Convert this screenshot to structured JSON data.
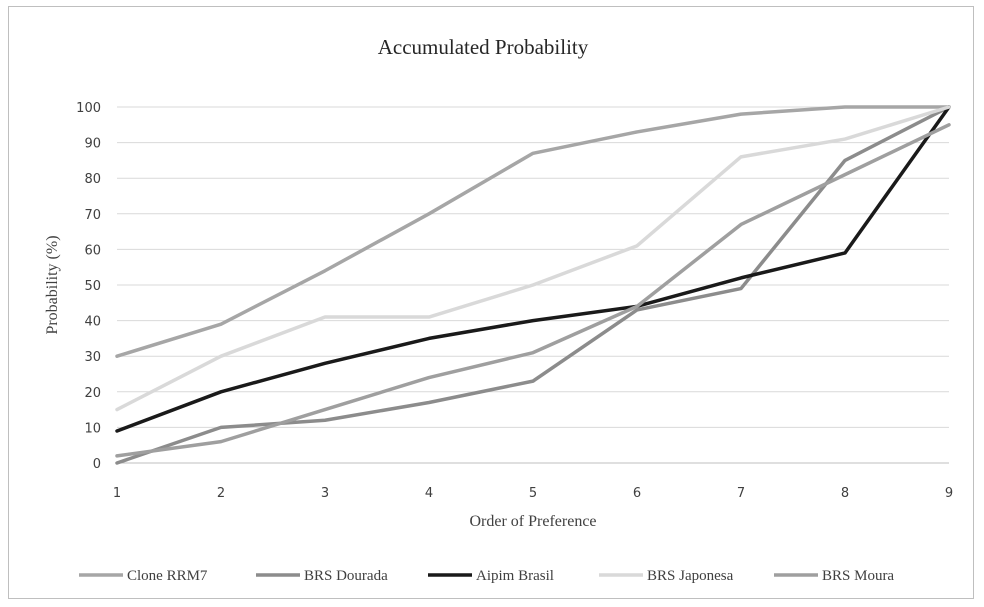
{
  "chart_data": {
    "type": "line",
    "title": "Accumulated Probability",
    "xlabel": "Order of Preference",
    "ylabel": "Probability (%)",
    "x": [
      1,
      2,
      3,
      4,
      5,
      6,
      7,
      8,
      9
    ],
    "xlim": [
      1,
      9
    ],
    "ylim": [
      0,
      100
    ],
    "yticks": [
      0,
      10,
      20,
      30,
      40,
      50,
      60,
      70,
      80,
      90,
      100
    ],
    "grid": "horizontal",
    "legend": "bottom",
    "series": [
      {
        "name": "Clone RRM7",
        "color": "#a6a6a6",
        "width": 3.5,
        "values": [
          30,
          39,
          54,
          70,
          87,
          93,
          98,
          100,
          100
        ]
      },
      {
        "name": "BRS Dourada",
        "color": "#8c8c8c",
        "width": 3.5,
        "values": [
          0,
          10,
          12,
          17,
          23,
          43,
          49,
          85,
          100
        ]
      },
      {
        "name": "Aipim Brasil",
        "color": "#1a1a1a",
        "width": 3.5,
        "values": [
          9,
          20,
          28,
          35,
          40,
          44,
          52,
          59,
          100
        ]
      },
      {
        "name": "BRS Japonesa",
        "color": "#d9d9d9",
        "width": 3.5,
        "values": [
          15,
          30,
          41,
          41,
          50,
          61,
          86,
          91,
          100
        ]
      },
      {
        "name": "BRS Moura",
        "color": "#9f9f9f",
        "width": 3.5,
        "values": [
          2,
          6,
          15,
          24,
          31,
          44,
          67,
          81,
          95
        ]
      }
    ]
  }
}
